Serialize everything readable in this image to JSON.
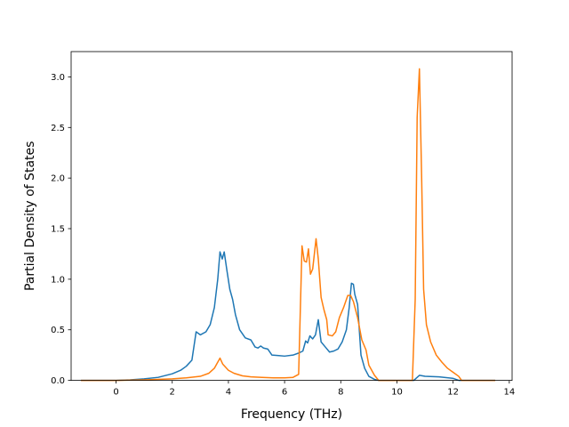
{
  "chart_data": {
    "type": "line",
    "title": "",
    "xlabel": "Frequency (THz)",
    "ylabel": "Partial Density of States",
    "xlim": [
      -1.6,
      14.1
    ],
    "ylim": [
      0,
      3.25
    ],
    "x_ticks": [
      0,
      2,
      4,
      6,
      8,
      10,
      12,
      14
    ],
    "y_ticks": [
      0.0,
      0.5,
      1.0,
      1.5,
      2.0,
      2.5,
      3.0
    ],
    "x_tick_labels": [
      "0",
      "2",
      "4",
      "6",
      "8",
      "10",
      "12",
      "14"
    ],
    "y_tick_labels": [
      "0.0",
      "0.5",
      "1.0",
      "1.5",
      "2.0",
      "2.5",
      "3.0"
    ],
    "grid": false,
    "legend": false,
    "series": [
      {
        "color": "#1f77b4",
        "points": [
          [
            -1.25,
            0.0
          ],
          [
            0.0,
            0.0
          ],
          [
            0.5,
            0.005
          ],
          [
            1.0,
            0.015
          ],
          [
            1.5,
            0.03
          ],
          [
            2.0,
            0.065
          ],
          [
            2.3,
            0.1
          ],
          [
            2.5,
            0.14
          ],
          [
            2.7,
            0.2
          ],
          [
            2.85,
            0.48
          ],
          [
            3.0,
            0.45
          ],
          [
            3.2,
            0.48
          ],
          [
            3.35,
            0.55
          ],
          [
            3.5,
            0.72
          ],
          [
            3.62,
            1.0
          ],
          [
            3.7,
            1.27
          ],
          [
            3.78,
            1.2
          ],
          [
            3.85,
            1.27
          ],
          [
            3.95,
            1.08
          ],
          [
            4.05,
            0.9
          ],
          [
            4.15,
            0.8
          ],
          [
            4.25,
            0.65
          ],
          [
            4.4,
            0.5
          ],
          [
            4.6,
            0.42
          ],
          [
            4.8,
            0.4
          ],
          [
            4.95,
            0.33
          ],
          [
            5.05,
            0.32
          ],
          [
            5.15,
            0.34
          ],
          [
            5.25,
            0.32
          ],
          [
            5.4,
            0.31
          ],
          [
            5.55,
            0.25
          ],
          [
            5.8,
            0.245
          ],
          [
            6.0,
            0.24
          ],
          [
            6.3,
            0.25
          ],
          [
            6.5,
            0.27
          ],
          [
            6.65,
            0.29
          ],
          [
            6.75,
            0.39
          ],
          [
            6.82,
            0.37
          ],
          [
            6.9,
            0.44
          ],
          [
            7.0,
            0.41
          ],
          [
            7.1,
            0.45
          ],
          [
            7.2,
            0.6
          ],
          [
            7.3,
            0.38
          ],
          [
            7.45,
            0.33
          ],
          [
            7.6,
            0.28
          ],
          [
            7.75,
            0.29
          ],
          [
            7.9,
            0.31
          ],
          [
            8.05,
            0.38
          ],
          [
            8.2,
            0.5
          ],
          [
            8.3,
            0.72
          ],
          [
            8.38,
            0.96
          ],
          [
            8.45,
            0.95
          ],
          [
            8.5,
            0.85
          ],
          [
            8.6,
            0.75
          ],
          [
            8.72,
            0.25
          ],
          [
            8.85,
            0.12
          ],
          [
            9.0,
            0.04
          ],
          [
            9.2,
            0.01
          ],
          [
            9.35,
            0.0
          ],
          [
            10.6,
            0.0
          ],
          [
            10.8,
            0.05
          ],
          [
            11.0,
            0.04
          ],
          [
            11.5,
            0.035
          ],
          [
            12.0,
            0.02
          ],
          [
            12.2,
            0.0
          ],
          [
            13.5,
            0.0
          ]
        ]
      },
      {
        "color": "#ff7f0e",
        "points": [
          [
            -1.25,
            0.0
          ],
          [
            0.0,
            0.0
          ],
          [
            1.0,
            0.005
          ],
          [
            2.0,
            0.015
          ],
          [
            2.5,
            0.025
          ],
          [
            3.0,
            0.04
          ],
          [
            3.3,
            0.07
          ],
          [
            3.5,
            0.12
          ],
          [
            3.6,
            0.17
          ],
          [
            3.7,
            0.22
          ],
          [
            3.8,
            0.16
          ],
          [
            4.0,
            0.1
          ],
          [
            4.2,
            0.07
          ],
          [
            4.5,
            0.045
          ],
          [
            4.8,
            0.035
          ],
          [
            5.2,
            0.03
          ],
          [
            5.6,
            0.025
          ],
          [
            6.0,
            0.025
          ],
          [
            6.3,
            0.03
          ],
          [
            6.5,
            0.06
          ],
          [
            6.62,
            1.33
          ],
          [
            6.7,
            1.18
          ],
          [
            6.78,
            1.17
          ],
          [
            6.85,
            1.3
          ],
          [
            6.92,
            1.05
          ],
          [
            7.0,
            1.1
          ],
          [
            7.12,
            1.4
          ],
          [
            7.2,
            1.2
          ],
          [
            7.3,
            0.82
          ],
          [
            7.4,
            0.7
          ],
          [
            7.5,
            0.6
          ],
          [
            7.55,
            0.45
          ],
          [
            7.7,
            0.44
          ],
          [
            7.82,
            0.48
          ],
          [
            7.95,
            0.62
          ],
          [
            8.1,
            0.72
          ],
          [
            8.25,
            0.84
          ],
          [
            8.35,
            0.84
          ],
          [
            8.45,
            0.78
          ],
          [
            8.6,
            0.62
          ],
          [
            8.75,
            0.4
          ],
          [
            8.9,
            0.3
          ],
          [
            9.0,
            0.15
          ],
          [
            9.2,
            0.05
          ],
          [
            9.35,
            0.0
          ],
          [
            10.55,
            0.0
          ],
          [
            10.65,
            0.8
          ],
          [
            10.72,
            2.6
          ],
          [
            10.8,
            3.08
          ],
          [
            10.88,
            2.0
          ],
          [
            10.95,
            0.9
          ],
          [
            11.05,
            0.55
          ],
          [
            11.2,
            0.38
          ],
          [
            11.4,
            0.25
          ],
          [
            11.6,
            0.18
          ],
          [
            11.8,
            0.12
          ],
          [
            12.0,
            0.08
          ],
          [
            12.2,
            0.04
          ],
          [
            12.3,
            0.0
          ],
          [
            13.5,
            0.0
          ]
        ]
      }
    ]
  }
}
